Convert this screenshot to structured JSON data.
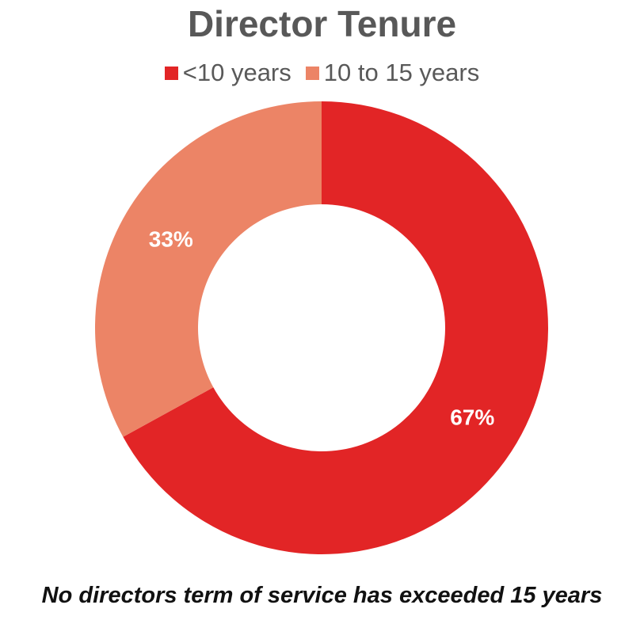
{
  "chart_data": {
    "type": "pie",
    "donut": true,
    "title": "Director Tenure",
    "legend_position": "top",
    "slices": [
      {
        "label": "<10 years",
        "value": 67,
        "display": "67%",
        "color": "#E22526"
      },
      {
        "label": "10 to 15 years",
        "value": 33,
        "display": "33%",
        "color": "#EC8466"
      }
    ],
    "start_angle": "12 o'clock",
    "direction": "clockwise",
    "caption": "No directors term of service has exceeded 15 years"
  }
}
